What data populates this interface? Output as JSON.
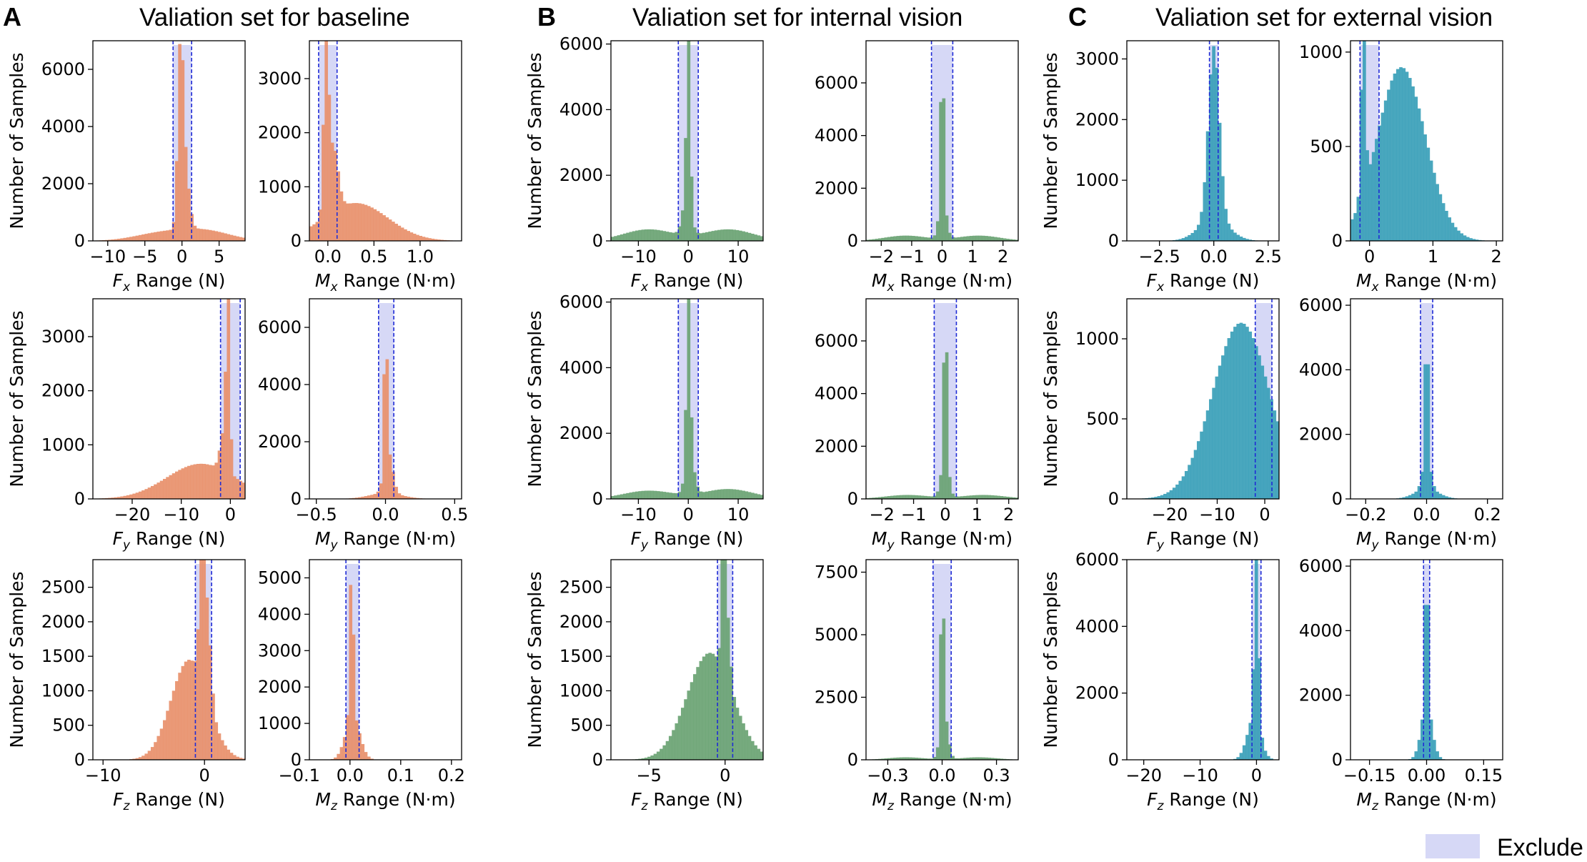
{
  "figure": {
    "panels": [
      {
        "letter": "A",
        "title": "Valiation set for baseline",
        "color": "#e8906b"
      },
      {
        "letter": "B",
        "title": "Valiation set for internal vision",
        "color": "#6aa373"
      },
      {
        "letter": "C",
        "title": "Valiation set for external vision",
        "color": "#3a9fb8"
      }
    ],
    "exclude_color": "#d6d8f6",
    "threshold_color": "#1f2bd6",
    "legend": {
      "label": "Exclude"
    },
    "ylabel": "Number of Samples"
  },
  "chart_data": [
    {
      "type": "histogram",
      "panel": "A",
      "quantity": "Fx",
      "xlabel": "Fx Range (N)",
      "xlim": [
        -12,
        8.5
      ],
      "ylim": [
        0,
        7000
      ],
      "xticks": [
        -10,
        -5,
        0,
        5
      ],
      "yticks": [
        0,
        2000,
        4000,
        6000
      ],
      "exclude": [
        -1.2,
        1.3
      ],
      "peaks": [
        {
          "x": -0.2,
          "h": 6600,
          "w": 0.35
        },
        {
          "x": 0.5,
          "h": 1900,
          "w": 0.5
        }
      ],
      "curves": [
        {
          "x": -3,
          "h": 250,
          "w": 3.5
        },
        {
          "x": 3,
          "h": 350,
          "w": 3.5
        }
      ]
    },
    {
      "type": "histogram",
      "panel": "A",
      "quantity": "Mx",
      "xlabel": "Mx Range (N·m)",
      "xlim": [
        -0.2,
        1.45
      ],
      "ylim": [
        0,
        3700
      ],
      "xticks": [
        0,
        0.5,
        1.0
      ],
      "yticks": [
        0,
        1000,
        2000,
        3000
      ],
      "exclude": [
        -0.1,
        0.1
      ],
      "peaks": [
        {
          "x": -0.02,
          "h": 3450,
          "w": 0.025
        },
        {
          "x": 0.06,
          "h": 1200,
          "w": 0.05
        }
      ],
      "curves": [
        {
          "x": 0.3,
          "h": 700,
          "w": 0.35
        }
      ]
    },
    {
      "type": "histogram",
      "panel": "A",
      "quantity": "Fy",
      "xlabel": "Fy Range (N)",
      "xlim": [
        -28,
        3
      ],
      "ylim": [
        0,
        3700
      ],
      "xticks": [
        -20,
        -10,
        0
      ],
      "yticks": [
        0,
        1000,
        2000,
        3000
      ],
      "exclude": [
        -2,
        2
      ],
      "peaks": [
        {
          "x": -0.5,
          "h": 3450,
          "w": 0.35
        },
        {
          "x": -1.4,
          "h": 700,
          "w": 0.7
        }
      ],
      "curves": [
        {
          "x": -6,
          "h": 650,
          "w": 7
        }
      ]
    },
    {
      "type": "histogram",
      "panel": "A",
      "quantity": "My",
      "xlabel": "My Range (N·m)",
      "xlim": [
        -0.55,
        0.55
      ],
      "ylim": [
        0,
        7000
      ],
      "xticks": [
        -0.5,
        0,
        0.5
      ],
      "yticks": [
        0,
        2000,
        4000,
        6000
      ],
      "exclude": [
        -0.05,
        0.06
      ],
      "peaks": [
        {
          "x": 0.0,
          "h": 6600,
          "w": 0.008
        },
        {
          "x": 0.02,
          "h": 1500,
          "w": 0.03
        }
      ],
      "curves": [
        {
          "x": 0,
          "h": 200,
          "w": 0.12
        }
      ]
    },
    {
      "type": "histogram",
      "panel": "A",
      "quantity": "Fz",
      "xlabel": "Fz Range (N)",
      "xlim": [
        -11,
        4
      ],
      "ylim": [
        0,
        2900
      ],
      "xticks": [
        -10,
        0
      ],
      "yticks": [
        0,
        500,
        1000,
        1500,
        2000,
        2500
      ],
      "exclude": [
        -0.9,
        0.7
      ],
      "peaks": [
        {
          "x": -0.2,
          "h": 2650,
          "w": 0.25
        },
        {
          "x": 0.4,
          "h": 1000,
          "w": 0.3
        }
      ],
      "curves": [
        {
          "x": -1.5,
          "h": 1450,
          "w": 1.8
        }
      ]
    },
    {
      "type": "histogram",
      "panel": "A",
      "quantity": "Mz",
      "xlabel": "Mz Range (N·m)",
      "xlim": [
        -0.08,
        0.22
      ],
      "ylim": [
        0,
        5500
      ],
      "xticks": [
        -0.1,
        0,
        0.1,
        0.2
      ],
      "yticks": [
        0,
        1000,
        2000,
        3000,
        4000,
        5000
      ],
      "exclude": [
        -0.008,
        0.018
      ],
      "peaks": [
        {
          "x": 0.003,
          "h": 5000,
          "w": 0.003
        }
      ],
      "curves": [
        {
          "x": 0.005,
          "h": 1200,
          "w": 0.014
        }
      ]
    },
    {
      "type": "histogram",
      "panel": "B",
      "quantity": "Fx",
      "xlabel": "Fx Range (N)",
      "xlim": [
        -15.5,
        15
      ],
      "ylim": [
        0,
        6100
      ],
      "xticks": [
        -10,
        0,
        10
      ],
      "yticks": [
        0,
        2000,
        4000,
        6000
      ],
      "exclude": [
        -2,
        2
      ],
      "peaks": [
        {
          "x": 0,
          "h": 5500,
          "w": 0.35
        },
        {
          "x": -0.3,
          "h": 1200,
          "w": 0.8
        }
      ],
      "curves": [
        {
          "x": -8,
          "h": 350,
          "w": 5
        },
        {
          "x": 8,
          "h": 350,
          "w": 5
        }
      ]
    },
    {
      "type": "histogram",
      "panel": "B",
      "quantity": "Mx",
      "xlabel": "Mx Range (N·m)",
      "xlim": [
        -2.5,
        2.5
      ],
      "ylim": [
        0,
        7600
      ],
      "xticks": [
        -2,
        -1,
        0,
        1,
        2
      ],
      "yticks": [
        0,
        2000,
        4000,
        6000
      ],
      "exclude": [
        -0.35,
        0.35
      ],
      "peaks": [
        {
          "x": 0,
          "h": 7000,
          "w": 0.05
        },
        {
          "x": 0.02,
          "h": 1200,
          "w": 0.12
        }
      ],
      "curves": [
        {
          "x": -1.2,
          "h": 200,
          "w": 0.7
        },
        {
          "x": 1.2,
          "h": 200,
          "w": 0.7
        }
      ]
    },
    {
      "type": "histogram",
      "panel": "B",
      "quantity": "Fy",
      "xlabel": "Fy Range (N)",
      "xlim": [
        -15.5,
        15
      ],
      "ylim": [
        0,
        6100
      ],
      "xticks": [
        -10,
        0,
        10
      ],
      "yticks": [
        0,
        2000,
        4000,
        6000
      ],
      "exclude": [
        -2,
        2
      ],
      "peaks": [
        {
          "x": 0,
          "h": 5500,
          "w": 0.35
        },
        {
          "x": 0.3,
          "h": 1300,
          "w": 0.8
        }
      ],
      "curves": [
        {
          "x": -8,
          "h": 250,
          "w": 5
        },
        {
          "x": 8,
          "h": 300,
          "w": 5
        }
      ]
    },
    {
      "type": "histogram",
      "panel": "B",
      "quantity": "My",
      "xlabel": "My Range (N·m)",
      "xlim": [
        -2.5,
        2.3
      ],
      "ylim": [
        0,
        7600
      ],
      "xticks": [
        -2,
        -1,
        0,
        1,
        2
      ],
      "yticks": [
        0,
        2000,
        4000,
        6000
      ],
      "exclude": [
        -0.35,
        0.35
      ],
      "peaks": [
        {
          "x": 0,
          "h": 7000,
          "w": 0.05
        },
        {
          "x": -0.02,
          "h": 1100,
          "w": 0.12
        }
      ],
      "curves": [
        {
          "x": -1.2,
          "h": 150,
          "w": 0.7
        },
        {
          "x": 1.2,
          "h": 150,
          "w": 0.7
        }
      ]
    },
    {
      "type": "histogram",
      "panel": "B",
      "quantity": "Fz",
      "xlabel": "Fz Range (N)",
      "xlim": [
        -7.5,
        2.5
      ],
      "ylim": [
        0,
        2900
      ],
      "xticks": [
        -5,
        0
      ],
      "yticks": [
        0,
        500,
        1000,
        1500,
        2000,
        2500
      ],
      "exclude": [
        -0.5,
        0.5
      ],
      "peaks": [
        {
          "x": -0.1,
          "h": 2650,
          "w": 0.12
        },
        {
          "x": 0.2,
          "h": 800,
          "w": 0.15
        }
      ],
      "curves": [
        {
          "x": -1,
          "h": 1550,
          "w": 1.5
        }
      ]
    },
    {
      "type": "histogram",
      "panel": "B",
      "quantity": "Mz",
      "xlabel": "Mz Range (N·m)",
      "xlim": [
        -0.42,
        0.42
      ],
      "ylim": [
        0,
        8000
      ],
      "xticks": [
        -0.3,
        0,
        0.3
      ],
      "yticks": [
        0,
        2500,
        5000,
        7500
      ],
      "exclude": [
        -0.05,
        0.05
      ],
      "peaks": [
        {
          "x": 0,
          "h": 7400,
          "w": 0.006
        },
        {
          "x": 0.01,
          "h": 2000,
          "w": 0.02
        }
      ],
      "curves": [
        {
          "x": -0.2,
          "h": 100,
          "w": 0.1
        },
        {
          "x": 0.2,
          "h": 100,
          "w": 0.1
        }
      ]
    },
    {
      "type": "histogram",
      "panel": "C",
      "quantity": "Fx",
      "xlabel": "Fx Range (N)",
      "xlim": [
        -4,
        3
      ],
      "ylim": [
        0,
        3300
      ],
      "xticks": [
        -2.5,
        0,
        2.5
      ],
      "yticks": [
        0,
        1000,
        2000,
        3000
      ],
      "exclude": [
        -0.2,
        0.2
      ],
      "peaks": [
        {
          "x": 0,
          "h": 2900,
          "w": 0.25
        }
      ],
      "curves": [
        {
          "x": 0,
          "h": 350,
          "w": 0.7
        }
      ]
    },
    {
      "type": "histogram",
      "panel": "C",
      "quantity": "Mx",
      "xlabel": "Mx Range (N·m)",
      "xlim": [
        -0.3,
        2.1
      ],
      "ylim": [
        0,
        1060
      ],
      "xticks": [
        0,
        1,
        2
      ],
      "yticks": [
        0,
        500,
        1000
      ],
      "exclude": [
        -0.15,
        0.15
      ],
      "peaks": [
        {
          "x": -0.1,
          "h": 1000,
          "w": 0.03
        }
      ],
      "curves": [
        {
          "x": 0.5,
          "h": 920,
          "w": 0.38
        }
      ]
    },
    {
      "type": "histogram",
      "panel": "C",
      "quantity": "Fy",
      "xlabel": "Fy Range (N)",
      "xlim": [
        -29,
        3
      ],
      "ylim": [
        0,
        1250
      ],
      "xticks": [
        -20,
        -10,
        0
      ],
      "yticks": [
        0,
        500,
        1000
      ],
      "exclude": [
        -2,
        1.5
      ],
      "peaks": [],
      "curves": [
        {
          "x": -5,
          "h": 1100,
          "w": 6
        }
      ]
    },
    {
      "type": "histogram",
      "panel": "C",
      "quantity": "My",
      "xlabel": "My Range (N·m)",
      "xlim": [
        -0.25,
        0.25
      ],
      "ylim": [
        0,
        6200
      ],
      "xticks": [
        -0.2,
        0,
        0.2
      ],
      "yticks": [
        0,
        2000,
        4000,
        6000
      ],
      "exclude": [
        -0.02,
        0.02
      ],
      "peaks": [
        {
          "x": 0,
          "h": 5600,
          "w": 0.003
        },
        {
          "x": 0,
          "h": 1200,
          "w": 0.012
        }
      ],
      "curves": [
        {
          "x": 0,
          "h": 300,
          "w": 0.04
        }
      ]
    },
    {
      "type": "histogram",
      "panel": "C",
      "quantity": "Fz",
      "xlabel": "Fz Range (N)",
      "xlim": [
        -23,
        4
      ],
      "ylim": [
        0,
        6000
      ],
      "xticks": [
        -20,
        -10,
        0
      ],
      "yticks": [
        0,
        2000,
        4000,
        6000
      ],
      "exclude": [
        -0.8,
        0.8
      ],
      "peaks": [
        {
          "x": 0,
          "h": 5400,
          "w": 0.35
        }
      ],
      "curves": [
        {
          "x": -0.5,
          "h": 1200,
          "w": 1.2
        }
      ]
    },
    {
      "type": "histogram",
      "panel": "C",
      "quantity": "Mz",
      "xlabel": "Mz Range (N·m)",
      "xlim": [
        -0.2,
        0.2
      ],
      "ylim": [
        0,
        6200
      ],
      "xticks": [
        -0.15,
        0,
        0.15
      ],
      "yticks": [
        0,
        2000,
        4000,
        6000
      ],
      "exclude": [
        -0.008,
        0.008
      ],
      "peaks": [
        {
          "x": 0,
          "h": 5600,
          "w": 0.004
        }
      ],
      "curves": [
        {
          "x": 0,
          "h": 1500,
          "w": 0.015
        }
      ]
    }
  ]
}
